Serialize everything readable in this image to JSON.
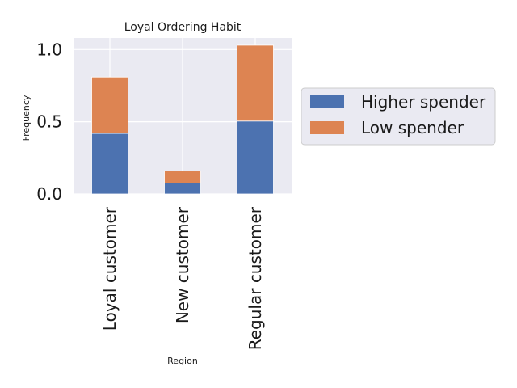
{
  "chart_data": {
    "type": "bar",
    "stacked": true,
    "title": "Loyal Ordering Habit",
    "xlabel": "Region",
    "ylabel": "Frequency",
    "categories": [
      "Loyal customer",
      "New customer",
      "Regular customer"
    ],
    "series": [
      {
        "name": "Higher spender",
        "values": [
          0.42,
          0.075,
          0.505
        ],
        "color": "#4c72b0"
      },
      {
        "name": "Low spender",
        "values": [
          0.39,
          0.085,
          0.525
        ],
        "color": "#dd8452"
      }
    ],
    "ylim": [
      0,
      1.08
    ],
    "yticks": [
      0.0,
      0.5,
      1.0
    ],
    "ytick_labels": [
      "0.0",
      "0.5",
      "1.0"
    ],
    "grid": true,
    "background": "#eaeaf2",
    "legend_position": "outside-right"
  }
}
